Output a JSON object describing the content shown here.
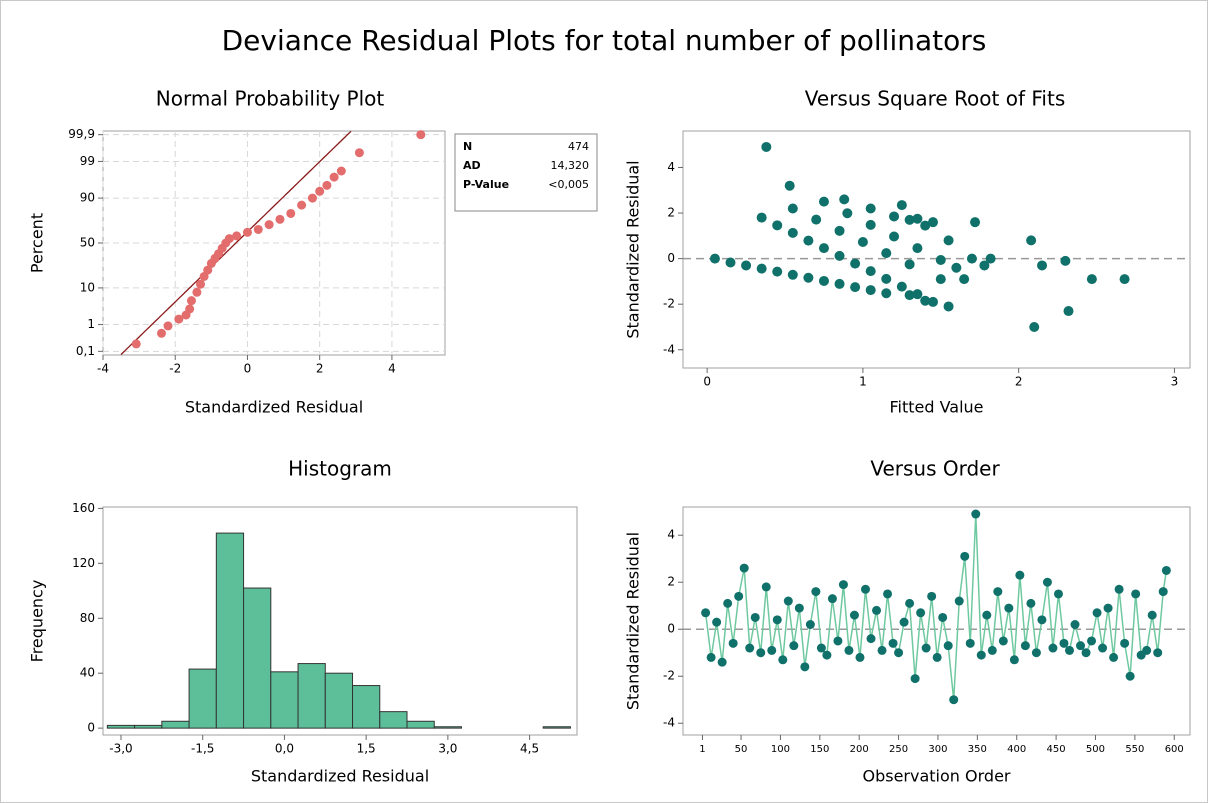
{
  "title": "Deviance Residual Plots for total number of pollinators",
  "chart_data": [
    {
      "type": "probability",
      "title": "Normal Probability Plot",
      "xlabel": "Standardized Residual",
      "ylabel": "Percent",
      "x": [
        -3.08,
        -2.38,
        -2.2,
        -1.9,
        -1.7,
        -1.6,
        -1.55,
        -1.4,
        -1.3,
        -1.2,
        -1.1,
        -1.0,
        -0.9,
        -0.8,
        -0.7,
        -0.6,
        -0.5,
        -0.3,
        0,
        0.3,
        0.6,
        0.9,
        1.2,
        1.5,
        1.8,
        2.0,
        2.2,
        2.4,
        2.6,
        3.1,
        4.8
      ],
      "values": [
        0.2,
        0.5,
        0.9,
        1.5,
        2,
        3,
        5,
        8,
        12,
        17,
        22,
        28,
        33,
        38,
        44,
        50,
        55,
        58,
        62,
        65,
        70,
        75,
        80,
        86,
        90,
        93,
        95,
        97,
        98,
        99.5,
        99.9
      ],
      "color": "#e36c6c",
      "fit_line": {
        "mean": -0.32,
        "sd": 1.0,
        "color": "#8b1a1a"
      },
      "xlim": [
        -4,
        5.47
      ],
      "xticks": [
        -4,
        -2,
        0,
        2,
        4
      ],
      "ylim": [
        0.07,
        99.93
      ],
      "yticks": [
        {
          "value": 0.1,
          "label": "0,1"
        },
        1,
        10,
        50,
        90,
        99,
        {
          "value": 99.9,
          "label": "99,9"
        }
      ],
      "grid": true,
      "stats": [
        {
          "name": "N",
          "text": "474"
        },
        {
          "name": "AD",
          "text": "14,320"
        },
        {
          "name": "P-Value",
          "text": "<0,005"
        }
      ]
    },
    {
      "type": "scatter",
      "title": "Versus Square Root of Fits",
      "xlabel": "Fitted Value",
      "ylabel": "Standardized Residual",
      "x": [
        0.05,
        0.15,
        0.25,
        0.35,
        0.45,
        0.55,
        0.65,
        0.75,
        0.85,
        0.95,
        1.05,
        1.15,
        1.3,
        1.4,
        1.55,
        0.35,
        0.45,
        0.55,
        0.65,
        0.75,
        0.85,
        0.95,
        1.05,
        1.15,
        1.25,
        1.35,
        1.45,
        0.55,
        0.7,
        0.85,
        1.0,
        1.15,
        1.3,
        1.5,
        0.75,
        0.9,
        1.05,
        1.2,
        1.35,
        1.5,
        1.6,
        0.88,
        1.05,
        1.2,
        1.3,
        1.4,
        1.55,
        1.7,
        0.38,
        0.53,
        1.72,
        2.08,
        2.1,
        2.15,
        2.3,
        2.32,
        2.47,
        2.68,
        1.82,
        1.78,
        1.65,
        1.25,
        1.35,
        1.45
      ],
      "values": [
        0.0,
        -0.17,
        -0.3,
        -0.44,
        -0.57,
        -0.71,
        -0.84,
        -0.98,
        -1.11,
        -1.25,
        -1.38,
        -1.52,
        -1.6,
        -1.85,
        -2.1,
        1.8,
        1.46,
        1.13,
        0.79,
        0.46,
        0.12,
        -0.22,
        -0.55,
        -0.89,
        -1.23,
        -1.56,
        -1.9,
        2.2,
        1.71,
        1.22,
        0.73,
        0.24,
        -0.25,
        -0.9,
        2.5,
        1.99,
        1.48,
        0.97,
        0.46,
        -0.06,
        -0.4,
        2.6,
        2.2,
        1.85,
        1.7,
        1.45,
        0.8,
        0.0,
        4.9,
        3.2,
        1.6,
        0.8,
        -3.0,
        -0.3,
        -0.1,
        -2.3,
        -0.9,
        -0.9,
        0.0,
        -0.3,
        -0.9,
        2.35,
        1.75,
        1.6
      ],
      "color": "#10716b",
      "hline": 0,
      "xlim": [
        -0.155,
        3.1
      ],
      "xticks": [
        0,
        1,
        2,
        3
      ],
      "ylim": [
        -4.8,
        5.6
      ],
      "yticks": [
        -4,
        -2,
        0,
        2,
        4
      ]
    },
    {
      "type": "histogram",
      "title": "Histogram",
      "xlabel": "Standardized Residual",
      "ylabel": "Frequency",
      "bins": [
        -3.25,
        -2.75,
        -2.25,
        -1.75,
        -1.25,
        -0.75,
        -0.25,
        0.25,
        0.75,
        1.25,
        1.75,
        2.25,
        2.75,
        3.25,
        3.75,
        4.25,
        4.75,
        5.25
      ],
      "counts": [
        2,
        2,
        5,
        43,
        142,
        102,
        41,
        47,
        40,
        31,
        12,
        5,
        1,
        0,
        0,
        0,
        1
      ],
      "color": "#5cbf99",
      "xlim": [
        -3.33,
        5.37
      ],
      "xticks": [
        {
          "value": -3,
          "label": "-3,0"
        },
        {
          "value": -1.5,
          "label": "-1,5"
        },
        {
          "value": 0,
          "label": "0,0"
        },
        {
          "value": 1.5,
          "label": "1,5"
        },
        {
          "value": 3,
          "label": "3,0"
        },
        {
          "value": 4.5,
          "label": "4,5"
        }
      ],
      "ylim": [
        -5,
        161
      ],
      "yticks": [
        0,
        40,
        80,
        120,
        160
      ]
    },
    {
      "type": "line",
      "title": "Versus Order",
      "xlabel": "Observation Order",
      "ylabel": "Standardized Residual",
      "x": [
        5,
        12,
        19,
        26,
        33,
        40,
        47,
        54,
        61,
        68,
        75,
        82,
        89,
        96,
        103,
        110,
        117,
        124,
        131,
        138,
        145,
        152,
        159,
        166,
        173,
        180,
        187,
        194,
        201,
        208,
        215,
        222,
        229,
        236,
        243,
        250,
        257,
        264,
        271,
        278,
        285,
        292,
        299,
        306,
        313,
        320,
        327,
        334,
        341,
        348,
        355,
        362,
        369,
        376,
        383,
        390,
        397,
        404,
        411,
        418,
        425,
        432,
        439,
        446,
        453,
        460,
        467,
        474,
        481,
        488,
        495,
        502,
        509,
        516,
        523,
        530,
        537,
        544,
        551,
        558,
        565,
        572,
        579,
        586,
        590
      ],
      "values": [
        0.7,
        -1.2,
        0.3,
        -1.4,
        1.1,
        -0.6,
        1.4,
        2.6,
        -0.8,
        0.5,
        -1.0,
        1.8,
        -0.9,
        0.4,
        -1.3,
        1.2,
        -0.7,
        0.9,
        -1.6,
        0.2,
        1.6,
        -0.8,
        -1.1,
        1.3,
        -0.5,
        1.9,
        -0.9,
        0.6,
        -1.2,
        1.7,
        -0.4,
        0.8,
        -0.9,
        1.5,
        -0.6,
        -1.0,
        0.3,
        1.1,
        -2.1,
        0.7,
        -0.8,
        1.4,
        -1.2,
        0.5,
        -0.7,
        -3.0,
        1.2,
        3.1,
        -0.6,
        4.9,
        -1.1,
        0.6,
        -0.9,
        1.6,
        -0.5,
        0.9,
        -1.3,
        2.3,
        -0.7,
        1.1,
        -1.0,
        0.4,
        2.0,
        -0.8,
        1.5,
        -0.6,
        -0.9,
        0.2,
        -0.7,
        -1.0,
        -0.5,
        0.7,
        -0.8,
        0.9,
        -1.2,
        1.7,
        -0.6,
        -2.0,
        1.5,
        -1.1,
        -0.9,
        0.6,
        -1.0,
        1.6,
        2.5
      ],
      "color": "#10716b",
      "line_color": "#6fc9a0",
      "hline": 0,
      "xlim": [
        -23.7,
        620
      ],
      "xticks": [
        1,
        50,
        100,
        150,
        200,
        250,
        300,
        350,
        400,
        450,
        500,
        550,
        600
      ],
      "ylim": [
        -4.5,
        5.2
      ],
      "yticks": [
        -4,
        -2,
        0,
        2,
        4
      ]
    }
  ]
}
